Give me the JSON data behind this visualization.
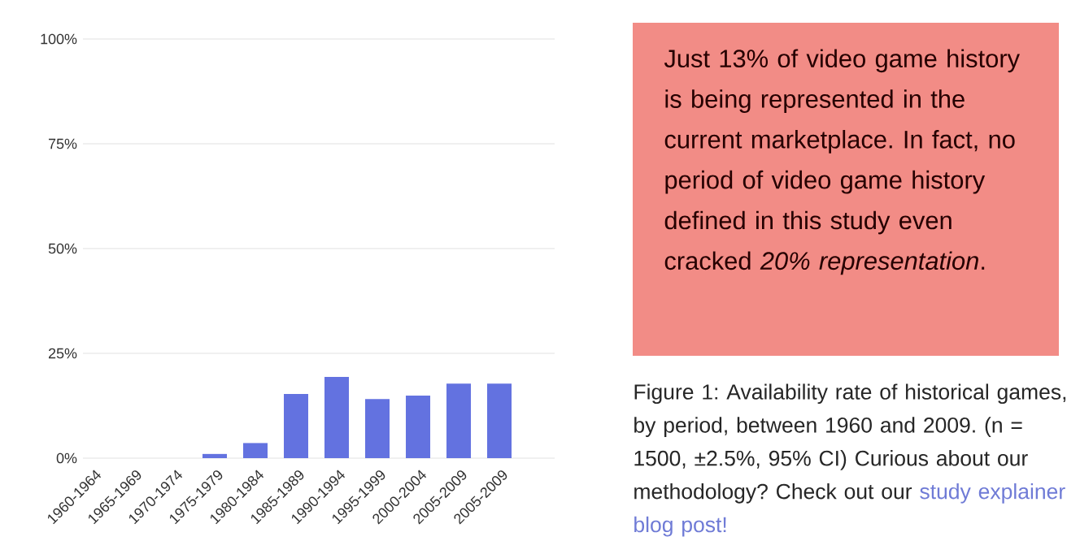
{
  "chart_data": {
    "type": "bar",
    "categories": [
      "1960-1964",
      "1965-1969",
      "1970-1974",
      "1975-1979",
      "1980-1984",
      "1985-1989",
      "1990-1994",
      "1995-1999",
      "2000-2004",
      "2005-2009",
      "2005-2009"
    ],
    "values": [
      0,
      0,
      0,
      1,
      3.6,
      15.3,
      19.4,
      14.1,
      14.9,
      17.8,
      17.8
    ],
    "color": "#6372e0",
    "ylim": [
      0,
      100
    ],
    "yticks": [
      {
        "value": 0,
        "label": "0%"
      },
      {
        "value": 25,
        "label": "25%"
      },
      {
        "value": 50,
        "label": "50%"
      },
      {
        "value": 75,
        "label": "75%"
      },
      {
        "value": 100,
        "label": "100%"
      }
    ],
    "grid": "y",
    "annotations": [
      "Just 13% of video game history is being represented in the current marketplace. In fact, no period of video game history defined in this study even cracked *20% representation*.",
      "Figure 1: Availability rate of historical games, by period, between 1960 and 2009. (n = 1500, ±2.5%, 95% CI) Curious about our methodology? Check out our",
      "study explainer blog post!"
    ]
  }
}
